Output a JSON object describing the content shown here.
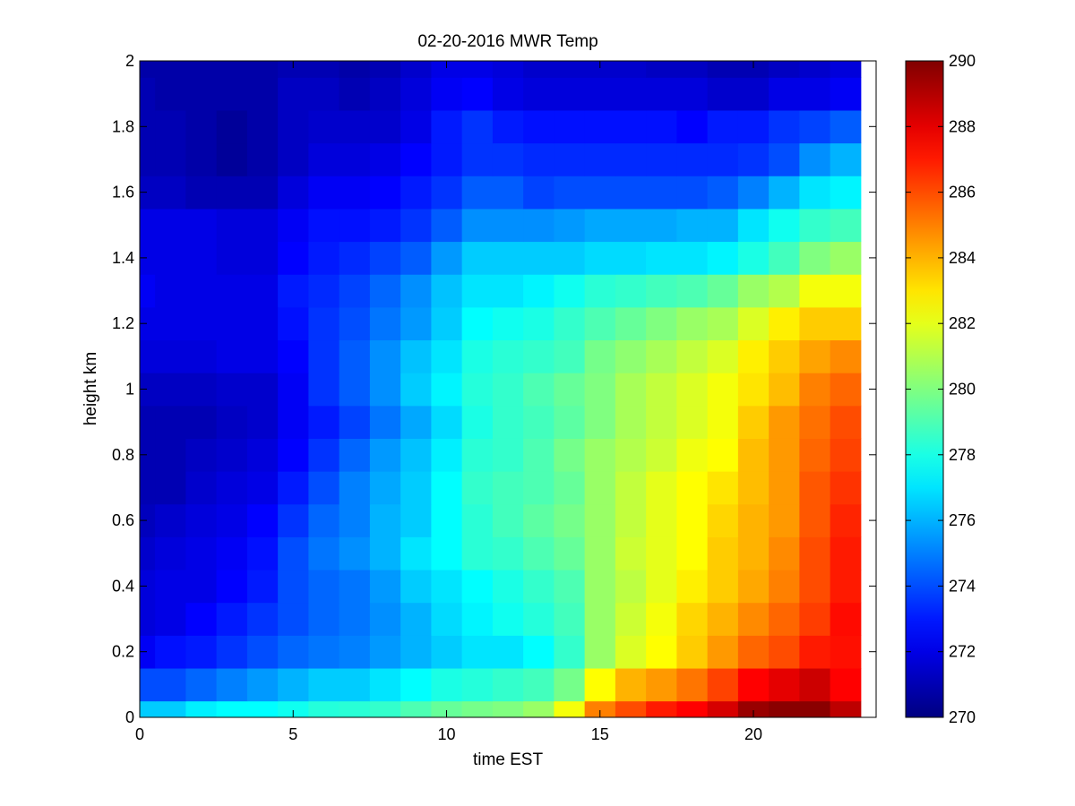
{
  "chart_data": {
    "type": "heatmap",
    "title": "02-20-2016 MWR Temp",
    "xlabel": "time EST",
    "ylabel": "height km",
    "xlim": [
      0,
      24
    ],
    "ylim": [
      0,
      2
    ],
    "x_ticks": [
      0,
      5,
      10,
      15,
      20
    ],
    "y_ticks": [
      0,
      0.2,
      0.4,
      0.6,
      0.8,
      1,
      1.2,
      1.4,
      1.6,
      1.8,
      2
    ],
    "colormap": "jet",
    "clim": [
      270,
      290
    ],
    "colorbar_ticks": [
      270,
      272,
      274,
      276,
      278,
      280,
      282,
      284,
      286,
      288,
      290
    ],
    "colorbar_position": "right",
    "grid": false,
    "time_bin_edges": [
      0,
      0.5,
      1.5,
      2.5,
      3.5,
      4.5,
      5.5,
      6.5,
      7.5,
      8.5,
      9.5,
      10.5,
      11.5,
      12.5,
      13.5,
      14.5,
      15.5,
      16.5,
      17.5,
      18.5,
      19.5,
      20.5,
      21.5,
      22.5,
      23.5
    ],
    "height_bin_edges_km": [
      0,
      0.05,
      0.15,
      0.25,
      0.35,
      0.45,
      0.55,
      0.65,
      0.75,
      0.85,
      0.95,
      1.05,
      1.15,
      1.25,
      1.35,
      1.45,
      1.55,
      1.65,
      1.75,
      1.85,
      1.95,
      2.0
    ],
    "temperature_rows_K": [
      [
        276.5,
        276.5,
        277.2,
        277.5,
        277.5,
        277.8,
        278.2,
        278.3,
        278.5,
        279.0,
        279.5,
        279.8,
        280.0,
        280.5,
        282.3,
        285.0,
        286.0,
        287.0,
        287.5,
        288.3,
        289.5,
        289.8,
        289.8,
        288.8
      ],
      [
        274.0,
        274.0,
        274.5,
        275.0,
        275.5,
        276.0,
        276.5,
        276.5,
        277.0,
        277.5,
        278.0,
        278.2,
        278.5,
        278.8,
        279.8,
        282.5,
        284.0,
        284.5,
        285.2,
        286.2,
        287.5,
        288.0,
        288.5,
        287.5
      ],
      [
        272.3,
        272.8,
        273.0,
        273.5,
        274.0,
        274.5,
        274.8,
        275.0,
        275.5,
        276.0,
        276.5,
        277.0,
        277.0,
        277.5,
        278.5,
        280.5,
        281.8,
        282.5,
        283.5,
        284.5,
        285.5,
        286.0,
        287.0,
        287.2
      ],
      [
        271.8,
        272.0,
        272.5,
        273.0,
        273.5,
        274.0,
        274.5,
        274.8,
        275.3,
        276.0,
        276.8,
        277.3,
        277.8,
        278.2,
        278.8,
        280.5,
        281.5,
        282.3,
        283.3,
        284.0,
        284.8,
        285.5,
        286.3,
        287.3
      ],
      [
        271.8,
        272.0,
        272.0,
        272.5,
        273.0,
        274.0,
        274.5,
        274.8,
        275.5,
        276.5,
        277.0,
        277.5,
        278.0,
        278.5,
        279.0,
        280.5,
        281.2,
        282.0,
        282.8,
        283.5,
        284.2,
        285.0,
        286.0,
        287.0
      ],
      [
        271.5,
        271.8,
        272.0,
        272.3,
        272.8,
        274.0,
        274.8,
        275.3,
        276.0,
        277.0,
        277.5,
        278.3,
        278.5,
        279.0,
        279.5,
        280.5,
        281.5,
        282.0,
        282.5,
        283.5,
        284.0,
        284.8,
        286.0,
        287.0
      ],
      [
        271.2,
        271.5,
        271.8,
        272.0,
        272.5,
        273.5,
        274.5,
        275.0,
        276.0,
        276.5,
        277.5,
        278.3,
        278.8,
        279.3,
        279.8,
        280.5,
        281.3,
        282.0,
        282.5,
        283.3,
        284.0,
        284.5,
        285.8,
        286.8
      ],
      [
        271.0,
        271.0,
        271.5,
        271.8,
        272.0,
        273.0,
        274.0,
        275.0,
        275.8,
        276.5,
        277.5,
        278.5,
        278.8,
        279.0,
        279.5,
        280.5,
        281.3,
        282.0,
        282.5,
        283.0,
        283.8,
        284.5,
        285.8,
        286.5
      ],
      [
        271.0,
        271.0,
        271.3,
        271.5,
        271.8,
        272.5,
        273.5,
        274.5,
        275.5,
        276.3,
        277.2,
        278.3,
        278.5,
        279.0,
        279.8,
        280.5,
        281.0,
        281.5,
        282.2,
        282.5,
        283.8,
        284.5,
        285.5,
        286.2
      ],
      [
        271.0,
        271.0,
        271.0,
        271.3,
        271.5,
        272.3,
        273.0,
        273.8,
        274.8,
        275.8,
        276.8,
        278.0,
        278.5,
        278.8,
        279.3,
        280.0,
        280.8,
        281.3,
        281.8,
        282.3,
        283.5,
        284.5,
        285.3,
        286.0
      ],
      [
        271.3,
        271.3,
        271.3,
        271.5,
        271.5,
        272.3,
        273.5,
        274.3,
        275.3,
        276.5,
        277.3,
        278.2,
        278.5,
        279.0,
        279.5,
        280.0,
        280.8,
        281.3,
        281.8,
        282.3,
        283.0,
        283.8,
        285.0,
        285.5
      ],
      [
        271.8,
        271.8,
        271.8,
        272.0,
        272.0,
        272.5,
        273.5,
        274.3,
        275.3,
        276.3,
        277.0,
        278.0,
        278.3,
        278.5,
        278.8,
        279.8,
        280.3,
        280.8,
        281.3,
        281.8,
        282.8,
        283.5,
        284.3,
        284.8
      ],
      [
        272.0,
        272.0,
        272.0,
        272.0,
        272.0,
        272.8,
        273.5,
        274.0,
        274.8,
        275.5,
        276.5,
        277.5,
        277.8,
        278.0,
        278.5,
        279.0,
        279.5,
        280.0,
        280.5,
        280.8,
        281.8,
        282.8,
        283.5,
        283.5
      ],
      [
        272.3,
        272.0,
        272.0,
        272.0,
        272.0,
        273.0,
        273.3,
        273.8,
        274.5,
        275.3,
        276.3,
        277.0,
        277.0,
        277.3,
        277.8,
        278.3,
        278.5,
        278.8,
        279.0,
        279.5,
        280.5,
        281.0,
        282.3,
        282.3
      ],
      [
        272.0,
        272.0,
        272.0,
        271.8,
        271.8,
        272.5,
        273.0,
        273.3,
        273.8,
        274.3,
        275.5,
        276.5,
        276.5,
        276.5,
        276.5,
        276.8,
        276.8,
        277.0,
        277.0,
        277.3,
        278.0,
        278.8,
        280.0,
        280.5
      ],
      [
        272.0,
        272.0,
        272.0,
        271.8,
        271.8,
        272.3,
        272.8,
        272.8,
        273.0,
        273.5,
        274.3,
        275.3,
        275.3,
        275.3,
        275.5,
        275.8,
        275.8,
        275.8,
        276.0,
        276.0,
        277.0,
        277.8,
        278.5,
        278.8
      ],
      [
        271.3,
        271.3,
        271.0,
        271.0,
        271.0,
        271.8,
        272.3,
        272.3,
        272.5,
        273.0,
        273.5,
        274.3,
        274.3,
        273.8,
        274.0,
        274.0,
        274.0,
        274.0,
        274.0,
        274.3,
        275.0,
        276.0,
        277.0,
        277.3
      ],
      [
        271.0,
        271.0,
        270.8,
        270.5,
        270.8,
        271.3,
        271.8,
        271.8,
        272.0,
        272.5,
        273.0,
        273.5,
        273.5,
        273.3,
        273.3,
        273.3,
        273.3,
        273.3,
        273.3,
        273.3,
        273.5,
        274.0,
        275.3,
        276.0
      ],
      [
        271.0,
        271.0,
        270.8,
        270.5,
        270.8,
        271.3,
        271.5,
        271.5,
        271.5,
        272.0,
        273.0,
        273.5,
        273.0,
        272.8,
        272.8,
        272.8,
        272.8,
        272.8,
        272.5,
        273.0,
        273.0,
        273.5,
        273.8,
        274.3
      ],
      [
        271.0,
        270.8,
        270.8,
        270.8,
        270.8,
        271.3,
        271.3,
        271.0,
        271.3,
        271.8,
        272.3,
        272.5,
        272.0,
        271.8,
        271.8,
        271.8,
        271.8,
        271.8,
        271.8,
        271.5,
        271.5,
        272.0,
        272.0,
        272.3
      ],
      [
        270.8,
        270.8,
        270.8,
        270.8,
        270.8,
        271.0,
        271.0,
        270.8,
        271.0,
        271.5,
        272.0,
        272.0,
        271.8,
        271.5,
        271.5,
        271.5,
        271.5,
        271.3,
        271.3,
        271.0,
        271.0,
        271.3,
        271.5,
        271.8
      ]
    ]
  }
}
